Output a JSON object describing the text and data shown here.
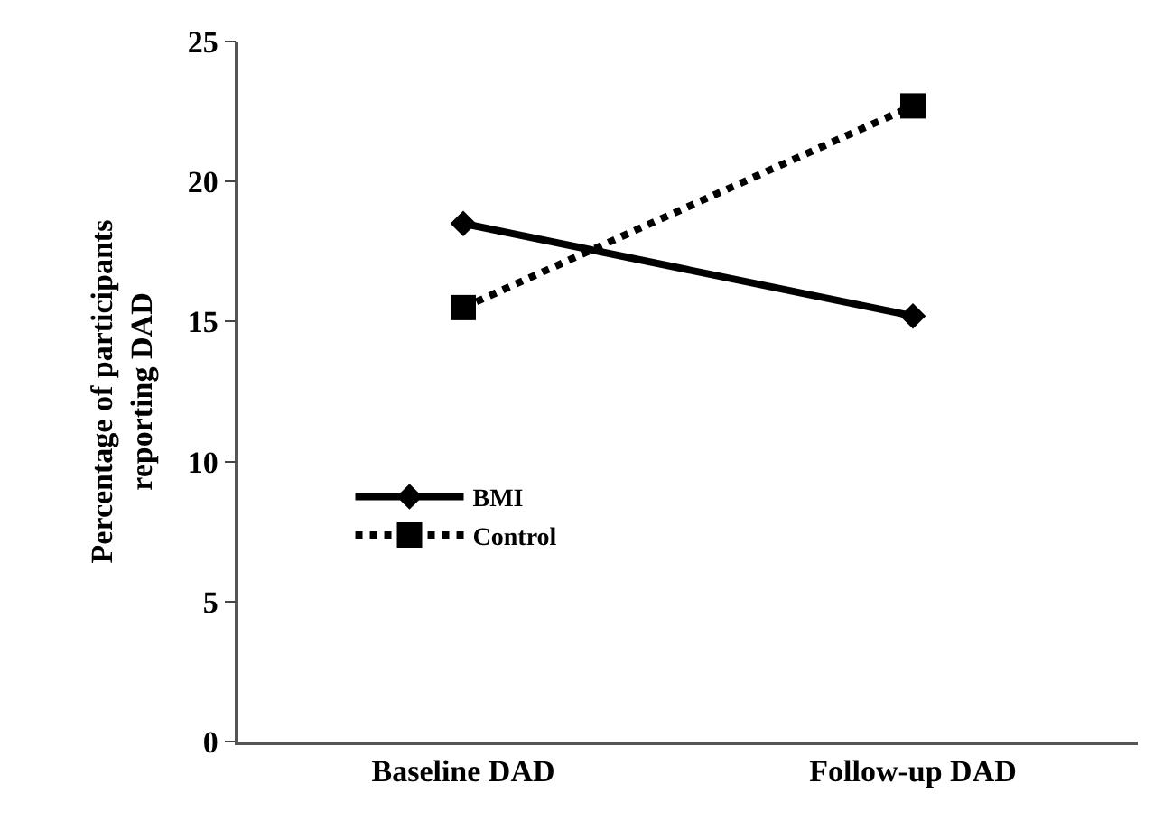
{
  "chart_data": {
    "type": "line",
    "ylabel": "Percentage of participants\nreporting DAD",
    "categories": [
      "Baseline DAD",
      "Follow-up DAD"
    ],
    "series": [
      {
        "name": "BMI",
        "color": "#000000",
        "values": [
          18.5,
          15.2
        ],
        "line_style": "solid",
        "marker": "diamond"
      },
      {
        "name": "Control",
        "color": "#000000",
        "values": [
          15.5,
          22.7
        ],
        "line_style": "dotted",
        "marker": "square"
      }
    ],
    "ylim": [
      0,
      25
    ],
    "yticks": [
      0,
      5,
      10,
      15,
      20,
      25
    ],
    "legend": "left"
  }
}
